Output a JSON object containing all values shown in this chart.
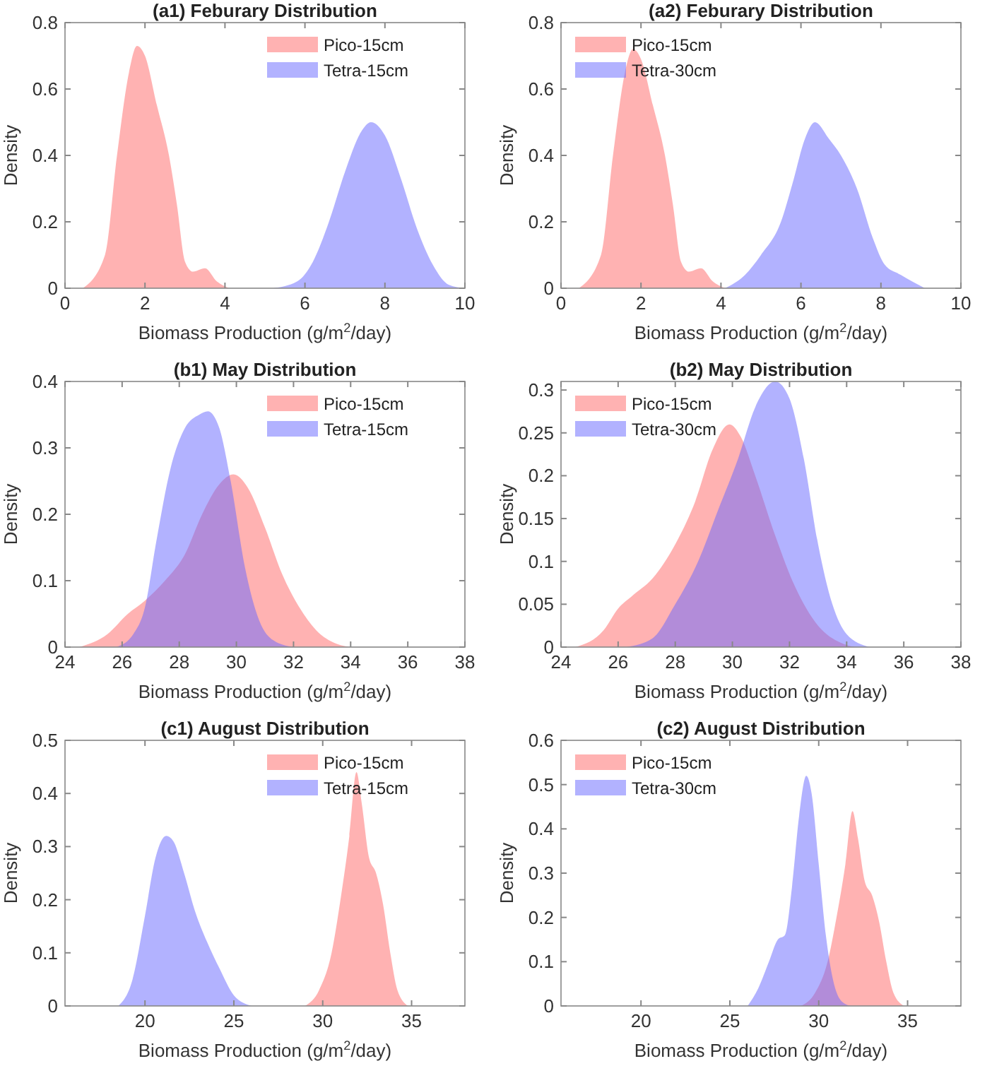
{
  "chart_data": [
    {
      "type": "area",
      "title": "(a1) Feburary Distribution",
      "xlabel": "Biomass Production (g/m$^{2}$/day)",
      "ylabel": "Density",
      "xlim": [
        0,
        10
      ],
      "xticks": [
        0,
        2,
        4,
        6,
        8,
        10
      ],
      "ylim": [
        0,
        0.8
      ],
      "yticks": [
        0,
        0.2,
        0.4,
        0.6,
        0.8
      ],
      "legend": "top right",
      "grid": false,
      "series": [
        {
          "name": "Pico-15cm",
          "color": "#ff6666",
          "x": [
            0.45,
            1.0,
            1.3,
            1.6,
            1.8,
            2.0,
            2.3,
            2.6,
            2.8,
            3.0,
            3.2,
            3.5,
            3.8,
            4.1
          ],
          "values": [
            0,
            0.1,
            0.4,
            0.65,
            0.73,
            0.7,
            0.55,
            0.4,
            0.25,
            0.08,
            0.05,
            0.06,
            0.02,
            0
          ]
        },
        {
          "name": "Tetra-15cm",
          "color": "#6666ff",
          "x": [
            5.2,
            5.8,
            6.2,
            6.6,
            7.0,
            7.4,
            7.65,
            8.0,
            8.4,
            8.8,
            9.2,
            9.6,
            10
          ],
          "values": [
            0,
            0.02,
            0.08,
            0.2,
            0.35,
            0.47,
            0.5,
            0.46,
            0.33,
            0.18,
            0.07,
            0.01,
            0
          ]
        }
      ]
    },
    {
      "type": "area",
      "title": "(a2) Feburary Distribution",
      "xlabel": "Biomass Production (g/m$^{2}$/day)",
      "ylabel": "Density",
      "xlim": [
        0,
        10
      ],
      "xticks": [
        0,
        2,
        4,
        6,
        8,
        10
      ],
      "ylim": [
        0,
        0.8
      ],
      "yticks": [
        0,
        0.2,
        0.4,
        0.6,
        0.8
      ],
      "legend": "top left",
      "grid": false,
      "series": [
        {
          "name": "Pico-15cm",
          "color": "#ff6666",
          "x": [
            0.45,
            1.0,
            1.3,
            1.6,
            1.8,
            2.0,
            2.3,
            2.6,
            2.8,
            3.0,
            3.2,
            3.5,
            3.8,
            4.1
          ],
          "values": [
            0,
            0.1,
            0.4,
            0.65,
            0.72,
            0.69,
            0.55,
            0.4,
            0.25,
            0.08,
            0.05,
            0.06,
            0.02,
            0
          ]
        },
        {
          "name": "Tetra-30cm",
          "color": "#6666ff",
          "x": [
            4.1,
            4.6,
            5.0,
            5.5,
            5.8,
            6.1,
            6.35,
            6.7,
            7.0,
            7.4,
            7.8,
            8.1,
            8.5,
            9.1
          ],
          "values": [
            0,
            0.04,
            0.1,
            0.2,
            0.32,
            0.45,
            0.5,
            0.45,
            0.4,
            0.3,
            0.15,
            0.07,
            0.04,
            0
          ]
        }
      ]
    },
    {
      "type": "area",
      "title": "(b1) May Distribution",
      "xlabel": "Biomass Production (g/m$^{2}$/day)",
      "ylabel": "Density",
      "xlim": [
        24,
        38
      ],
      "xticks": [
        24,
        26,
        28,
        30,
        32,
        34,
        36,
        38
      ],
      "ylim": [
        0,
        0.4
      ],
      "yticks": [
        0,
        0.1,
        0.2,
        0.3,
        0.4
      ],
      "legend": "top right",
      "grid": false,
      "series": [
        {
          "name": "Pico-15cm",
          "color": "#ff6666",
          "x": [
            24.5,
            25.5,
            26.2,
            26.8,
            27.5,
            28.2,
            28.8,
            29.4,
            29.9,
            30.4,
            31.0,
            31.6,
            32.2,
            32.8,
            33.5,
            34
          ],
          "values": [
            0,
            0.02,
            0.05,
            0.07,
            0.1,
            0.14,
            0.2,
            0.245,
            0.26,
            0.24,
            0.18,
            0.11,
            0.06,
            0.025,
            0.005,
            0
          ]
        },
        {
          "name": "Tetra-15cm",
          "color": "#6666ff",
          "x": [
            25.8,
            26.4,
            26.8,
            27.2,
            27.7,
            28.2,
            28.7,
            29.0,
            29.4,
            29.8,
            30.3,
            30.8,
            31.3,
            32
          ],
          "values": [
            0,
            0.02,
            0.06,
            0.16,
            0.27,
            0.33,
            0.35,
            0.355,
            0.33,
            0.25,
            0.12,
            0.04,
            0.01,
            0
          ]
        }
      ]
    },
    {
      "type": "area",
      "title": "(b2) May Distribution",
      "xlabel": "Biomass Production (g/m$^{2}$/day)",
      "ylabel": "Density",
      "xlim": [
        24,
        38
      ],
      "xticks": [
        24,
        26,
        28,
        30,
        32,
        34,
        36,
        38
      ],
      "ylim": [
        0,
        0.31
      ],
      "yticks": [
        0,
        0.05,
        0.1,
        0.15,
        0.2,
        0.25,
        0.3
      ],
      "legend": "top left",
      "grid": false,
      "series": [
        {
          "name": "Pico-15cm",
          "color": "#ff6666",
          "x": [
            24.5,
            25.5,
            26,
            26.5,
            27.2,
            28,
            28.7,
            29.3,
            29.9,
            30.3,
            30.8,
            31.5,
            32.2,
            33,
            33.8,
            34.3
          ],
          "values": [
            0,
            0.02,
            0.045,
            0.06,
            0.08,
            0.12,
            0.17,
            0.23,
            0.26,
            0.245,
            0.2,
            0.13,
            0.07,
            0.025,
            0.005,
            0
          ]
        },
        {
          "name": "Tetra-30cm",
          "color": "#6666ff",
          "x": [
            26.3,
            27.2,
            28,
            28.8,
            29.5,
            30.2,
            30.8,
            31.5,
            32.0,
            32.5,
            33,
            33.5,
            34,
            34.8
          ],
          "values": [
            0,
            0.01,
            0.05,
            0.1,
            0.16,
            0.22,
            0.28,
            0.31,
            0.29,
            0.22,
            0.12,
            0.05,
            0.015,
            0
          ]
        }
      ]
    },
    {
      "type": "area",
      "title": "(c1) August Distribution",
      "xlabel": "Biomass Production (g/m$^{2}$/day)",
      "ylabel": "Density",
      "xlim": [
        15.5,
        38
      ],
      "xticks": [
        20,
        25,
        30,
        35
      ],
      "ylim": [
        0,
        0.5
      ],
      "yticks": [
        0,
        0.1,
        0.2,
        0.3,
        0.4,
        0.5
      ],
      "legend": "top right",
      "grid": false,
      "series": [
        {
          "name": "Pico-15cm",
          "color": "#ff6666",
          "x": [
            29,
            29.8,
            30.5,
            31.0,
            31.5,
            31.9,
            32.2,
            32.6,
            33.0,
            33.4,
            33.8,
            34.2,
            34.8
          ],
          "values": [
            0,
            0.03,
            0.1,
            0.2,
            0.32,
            0.44,
            0.38,
            0.28,
            0.25,
            0.19,
            0.1,
            0.03,
            0
          ]
        },
        {
          "name": "Tetra-15cm",
          "color": "#6666ff",
          "x": [
            18.5,
            19.3,
            20,
            20.6,
            21.2,
            21.6,
            22.2,
            22.8,
            23.5,
            24.2,
            25,
            26
          ],
          "values": [
            0,
            0.05,
            0.17,
            0.28,
            0.32,
            0.31,
            0.25,
            0.18,
            0.12,
            0.07,
            0.02,
            0
          ]
        }
      ]
    },
    {
      "type": "area",
      "title": "(c2) August Distribution",
      "xlabel": "Biomass Production (g/m$^{2}$/day)",
      "ylabel": "Density",
      "xlim": [
        15.5,
        38
      ],
      "xticks": [
        20,
        25,
        30,
        35
      ],
      "ylim": [
        0,
        0.6
      ],
      "yticks": [
        0,
        0.1,
        0.2,
        0.3,
        0.4,
        0.5,
        0.6
      ],
      "legend": "top left",
      "grid": false,
      "series": [
        {
          "name": "Pico-15cm",
          "color": "#ff6666",
          "x": [
            29,
            29.8,
            30.5,
            31.0,
            31.5,
            31.9,
            32.2,
            32.6,
            33.0,
            33.4,
            33.8,
            34.2,
            34.8
          ],
          "values": [
            0,
            0.03,
            0.1,
            0.2,
            0.32,
            0.44,
            0.38,
            0.28,
            0.25,
            0.19,
            0.1,
            0.03,
            0
          ]
        },
        {
          "name": "Tetra-30cm",
          "color": "#6666ff",
          "x": [
            26,
            26.6,
            27.2,
            27.7,
            28.1,
            28.5,
            28.9,
            29.3,
            29.6,
            30.0,
            30.4,
            30.8,
            31.3,
            31.8
          ],
          "values": [
            0,
            0.04,
            0.1,
            0.15,
            0.16,
            0.27,
            0.43,
            0.52,
            0.48,
            0.32,
            0.16,
            0.06,
            0.01,
            0
          ]
        }
      ]
    }
  ]
}
